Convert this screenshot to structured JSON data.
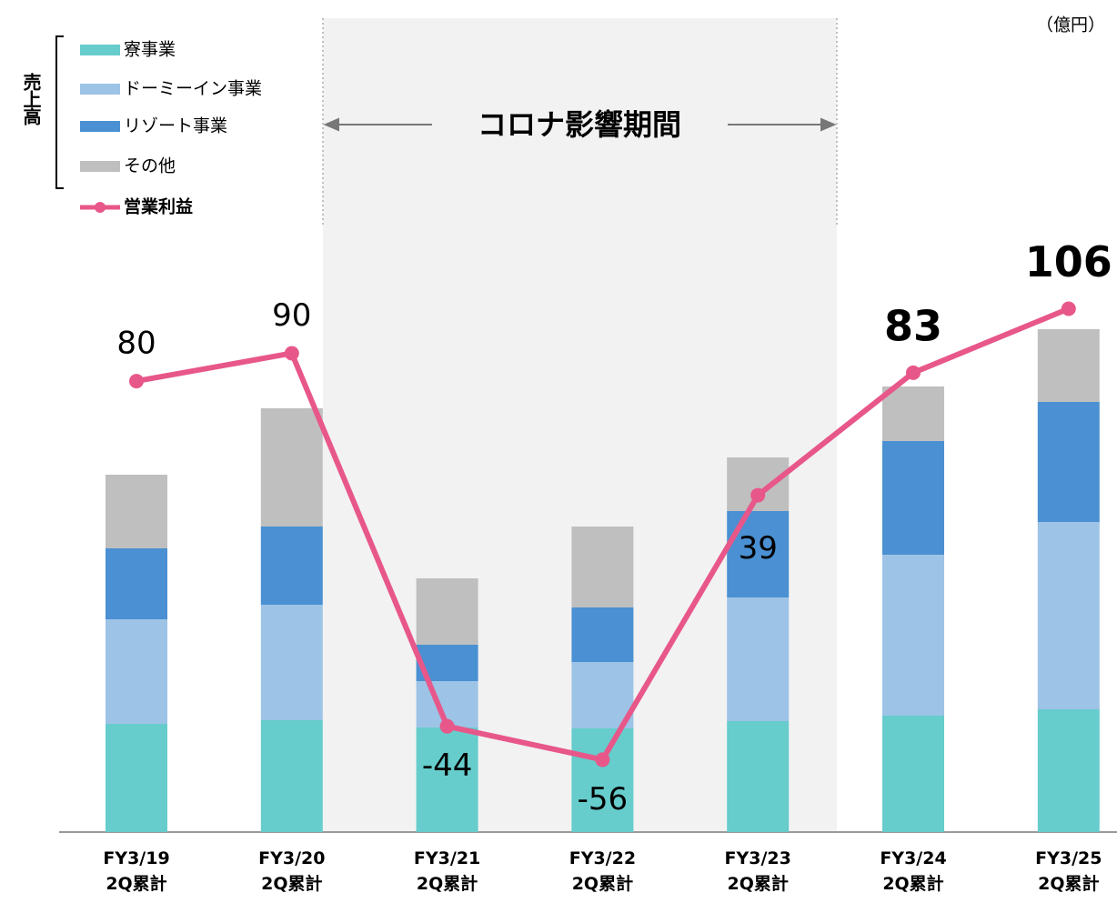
{
  "chart_data": {
    "type": "bar",
    "unit_label": "（億円）",
    "period_label": "コロナ影響期間",
    "legend_group_label": "売上高",
    "categories": [
      "FY3/19\n2Q累計",
      "FY3/20\n2Q累計",
      "FY3/21\n2Q累計",
      "FY3/22\n2Q累計",
      "FY3/23\n2Q累計",
      "FY3/24\n2Q累計",
      "FY3/25\n2Q累計"
    ],
    "series": [
      {
        "name": "寮事業",
        "color": "#66cccc",
        "values": [
          238,
          246,
          230,
          228,
          244,
          256,
          270
        ]
      },
      {
        "name": "ドーミーイン事業",
        "color": "#9dc3e6",
        "values": [
          230,
          254,
          102,
          146,
          272,
          354,
          412
        ]
      },
      {
        "name": "リゾート事業",
        "color": "#4a90d2",
        "values": [
          156,
          172,
          80,
          120,
          190,
          250,
          264
        ]
      },
      {
        "name": "その他",
        "color": "#bfbfbf",
        "values": [
          162,
          260,
          146,
          178,
          118,
          120,
          160
        ]
      },
      {
        "name": "営業利益",
        "type": "line",
        "axis": "y2",
        "color": "#e8578a",
        "values": [
          80,
          90,
          -44,
          -56,
          39,
          83,
          106
        ]
      }
    ],
    "ylim": [
      0,
      1200
    ],
    "y2lim": [
      -82,
      114
    ]
  }
}
